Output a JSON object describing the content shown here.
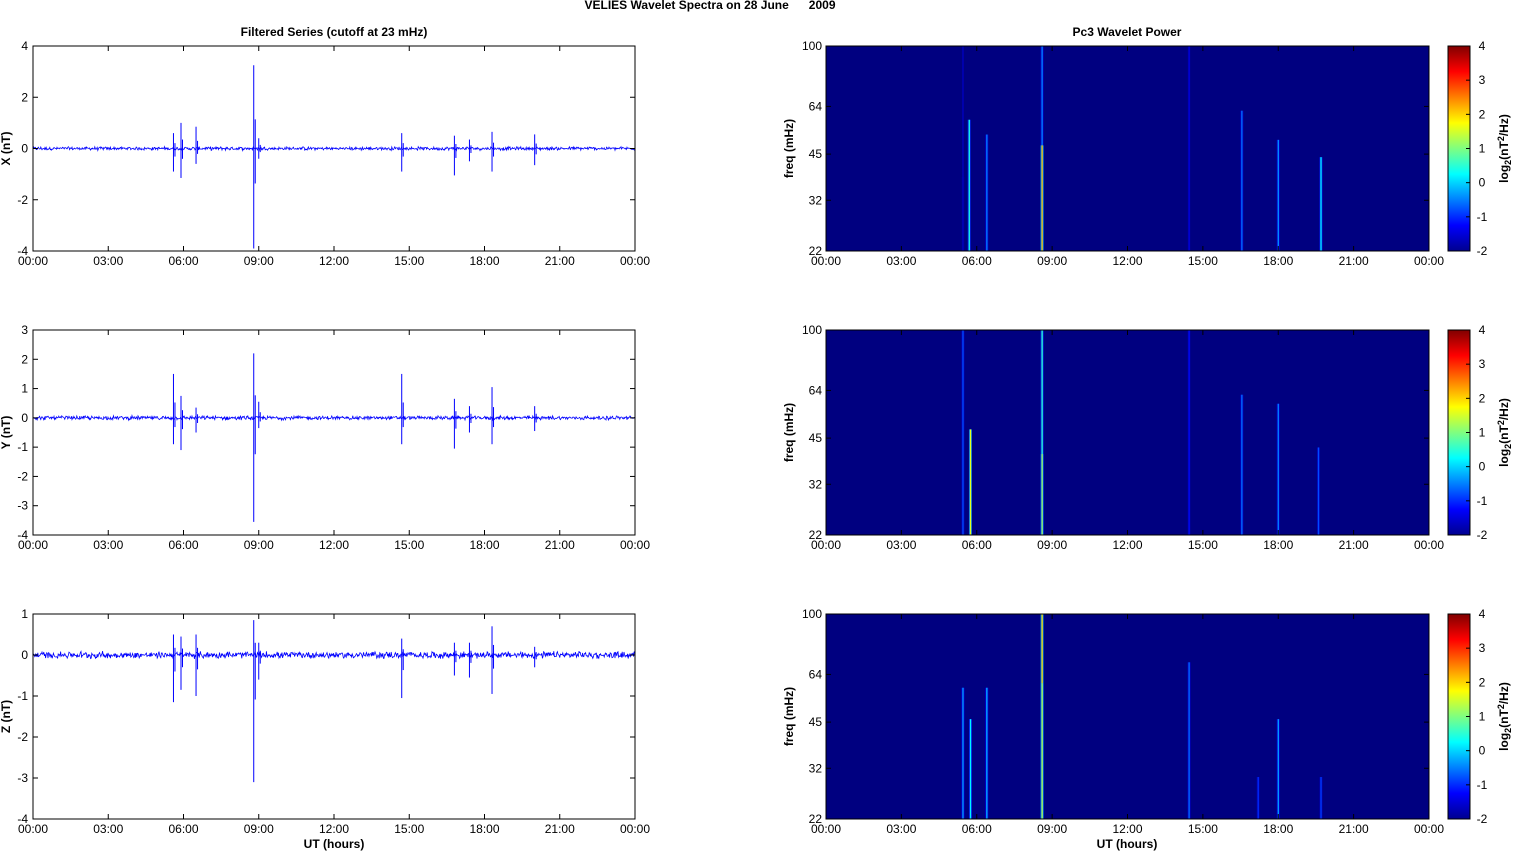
{
  "figure": {
    "title": "VELIES Wavelet Spectra on 28 June      2009",
    "left_title": "Filtered Series (cutoff at 23 mHz)",
    "right_title": "Pc3 Wavelet Power",
    "xlabel": "UT (hours)"
  },
  "colors": {
    "series_line": "#0000ff",
    "spectrum_background": "#00008f",
    "colormap": "jet"
  },
  "chart_data": [
    {
      "type": "line",
      "ylabel": "X (nT)",
      "ylim": [
        -4,
        4
      ],
      "yticks": [
        -4,
        -2,
        0,
        2,
        4
      ],
      "xlim": [
        0,
        24
      ],
      "xticks": [
        "00:00",
        "03:00",
        "06:00",
        "09:00",
        "12:00",
        "15:00",
        "18:00",
        "21:00",
        "00:00"
      ],
      "noise_amplitude": 0.08,
      "spikes": [
        [
          5.6,
          0.6,
          -0.9
        ],
        [
          5.9,
          1.0,
          -1.15
        ],
        [
          6.5,
          0.85,
          -0.6
        ],
        [
          8.8,
          3.25,
          -3.9
        ],
        [
          9.0,
          0.4,
          -0.4
        ],
        [
          14.7,
          0.6,
          -0.9
        ],
        [
          16.8,
          0.5,
          -1.05
        ],
        [
          17.4,
          0.35,
          -0.5
        ],
        [
          18.3,
          0.65,
          -0.9
        ],
        [
          20.0,
          0.55,
          -0.65
        ]
      ],
      "grid": false
    },
    {
      "type": "line",
      "ylabel": "Y (nT)",
      "ylim": [
        -4,
        3
      ],
      "yticks": [
        -4,
        -3,
        -2,
        -1,
        0,
        1,
        2,
        3
      ],
      "xlim": [
        0,
        24
      ],
      "xticks": [
        "00:00",
        "03:00",
        "06:00",
        "09:00",
        "12:00",
        "15:00",
        "18:00",
        "21:00",
        "00:00"
      ],
      "noise_amplitude": 0.08,
      "spikes": [
        [
          5.6,
          1.5,
          -0.9
        ],
        [
          5.9,
          0.75,
          -1.1
        ],
        [
          6.5,
          0.35,
          -0.5
        ],
        [
          8.8,
          2.2,
          -3.55
        ],
        [
          9.0,
          0.55,
          -0.35
        ],
        [
          14.7,
          1.5,
          -0.9
        ],
        [
          16.8,
          0.65,
          -1.05
        ],
        [
          17.4,
          0.4,
          -0.5
        ],
        [
          18.3,
          1.05,
          -0.9
        ],
        [
          20.0,
          0.4,
          -0.45
        ]
      ],
      "grid": false
    },
    {
      "type": "line",
      "ylabel": "Z (nT)",
      "ylim": [
        -4,
        1
      ],
      "yticks": [
        -4,
        -3,
        -2,
        -1,
        0,
        1
      ],
      "xlim": [
        0,
        24
      ],
      "xticks": [
        "00:00",
        "03:00",
        "06:00",
        "09:00",
        "12:00",
        "15:00",
        "18:00",
        "21:00",
        "00:00"
      ],
      "noise_amplitude": 0.1,
      "spikes": [
        [
          5.6,
          0.5,
          -1.15
        ],
        [
          5.9,
          0.45,
          -0.85
        ],
        [
          6.5,
          0.5,
          -1.0
        ],
        [
          8.8,
          0.85,
          -3.1
        ],
        [
          9.0,
          0.3,
          -0.6
        ],
        [
          14.7,
          0.4,
          -1.05
        ],
        [
          16.8,
          0.3,
          -0.5
        ],
        [
          17.4,
          0.3,
          -0.55
        ],
        [
          18.3,
          0.7,
          -0.95
        ],
        [
          20.0,
          0.2,
          -0.3
        ]
      ],
      "grid": false
    },
    {
      "type": "heatmap",
      "ylabel": "freq (mHz)",
      "yscale": "log",
      "ylim": [
        22,
        100
      ],
      "yticks": [
        22,
        32,
        45,
        64,
        100
      ],
      "xlim": [
        0,
        24
      ],
      "xticks": [
        "00:00",
        "03:00",
        "06:00",
        "09:00",
        "12:00",
        "15:00",
        "18:00",
        "21:00",
        "00:00"
      ],
      "colorbar_label": "log2(nT2/Hz)",
      "clim": [
        -2,
        4
      ],
      "cticks": [
        -2,
        -1,
        0,
        1,
        2,
        3,
        4
      ],
      "events": [
        [
          5.45,
          38,
          -1.0
        ],
        [
          5.45,
          100,
          -1.6
        ],
        [
          5.7,
          58,
          0.4
        ],
        [
          6.4,
          52,
          -0.5
        ],
        [
          8.6,
          100,
          -0.5
        ],
        [
          8.6,
          48,
          2.2
        ],
        [
          14.45,
          100,
          -1.4
        ],
        [
          16.55,
          62,
          -0.6
        ],
        [
          18.0,
          50,
          -0.4
        ],
        [
          19.7,
          44,
          0.2
        ]
      ],
      "background": -2
    },
    {
      "type": "heatmap",
      "ylabel": "freq (mHz)",
      "yscale": "log",
      "ylim": [
        22,
        100
      ],
      "yticks": [
        22,
        32,
        45,
        64,
        100
      ],
      "xlim": [
        0,
        24
      ],
      "xticks": [
        "00:00",
        "03:00",
        "06:00",
        "09:00",
        "12:00",
        "15:00",
        "18:00",
        "21:00",
        "00:00"
      ],
      "colorbar_label": "log2(nT2/Hz)",
      "clim": [
        -2,
        4
      ],
      "cticks": [
        -2,
        -1,
        0,
        1,
        2,
        3,
        4
      ],
      "events": [
        [
          5.45,
          100,
          -0.8
        ],
        [
          5.75,
          48,
          1.6
        ],
        [
          8.6,
          100,
          0.5
        ],
        [
          8.6,
          40,
          1.2
        ],
        [
          14.45,
          100,
          -1.2
        ],
        [
          16.55,
          62,
          -0.6
        ],
        [
          18.0,
          58,
          -0.5
        ],
        [
          19.6,
          42,
          -0.8
        ]
      ],
      "background": -2
    },
    {
      "type": "heatmap",
      "ylabel": "freq (mHz)",
      "yscale": "log",
      "ylim": [
        22,
        100
      ],
      "yticks": [
        22,
        32,
        45,
        64,
        100
      ],
      "xlim": [
        0,
        24
      ],
      "xticks": [
        "00:00",
        "03:00",
        "06:00",
        "09:00",
        "12:00",
        "15:00",
        "18:00",
        "21:00",
        "00:00"
      ],
      "colorbar_label": "log2(nT2/Hz)",
      "clim": [
        -2,
        4
      ],
      "cticks": [
        -2,
        -1,
        0,
        1,
        2,
        3,
        4
      ],
      "events": [
        [
          5.45,
          58,
          -0.3
        ],
        [
          5.75,
          46,
          0.2
        ],
        [
          6.4,
          58,
          -0.2
        ],
        [
          8.6,
          100,
          2.0
        ],
        [
          8.6,
          60,
          1.3
        ],
        [
          14.45,
          70,
          -0.6
        ],
        [
          17.2,
          30,
          -1.0
        ],
        [
          18.0,
          46,
          -0.3
        ],
        [
          19.7,
          30,
          -0.9
        ]
      ],
      "background": -2
    }
  ]
}
